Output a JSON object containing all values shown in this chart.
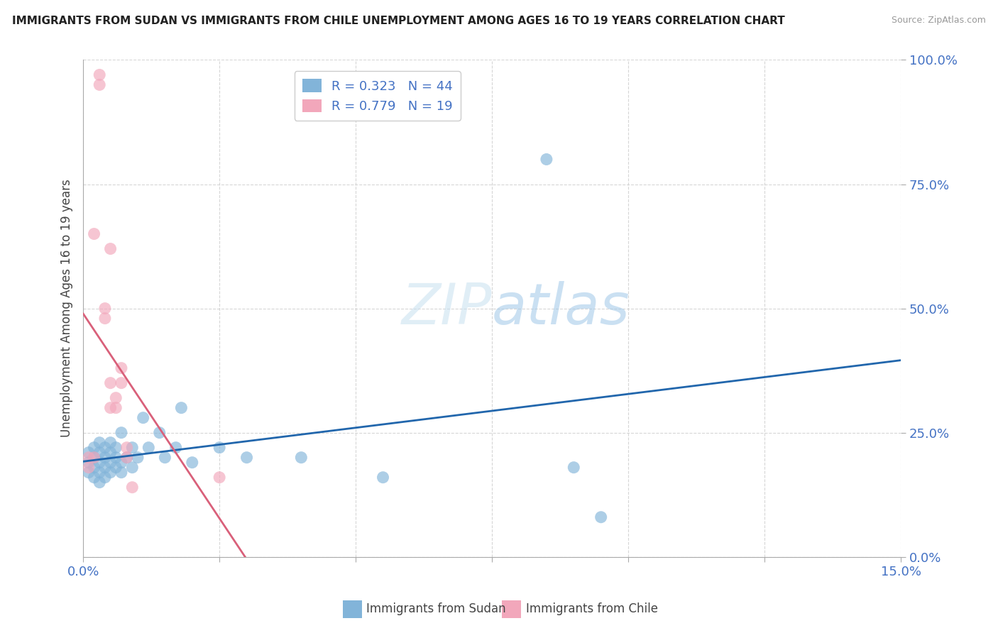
{
  "title": "IMMIGRANTS FROM SUDAN VS IMMIGRANTS FROM CHILE UNEMPLOYMENT AMONG AGES 16 TO 19 YEARS CORRELATION CHART",
  "source": "Source: ZipAtlas.com",
  "ylabel": "Unemployment Among Ages 16 to 19 years",
  "xlim": [
    0.0,
    0.15
  ],
  "ylim": [
    0.0,
    1.0
  ],
  "xticks": [
    0.0,
    0.025,
    0.05,
    0.075,
    0.1,
    0.125,
    0.15
  ],
  "xtick_labels_show": {
    "0.0": "0.0%",
    "0.15": "15.0%"
  },
  "yticks": [
    0.0,
    0.25,
    0.5,
    0.75,
    1.0
  ],
  "ytick_labels": [
    "0.0%",
    "25.0%",
    "50.0%",
    "75.0%",
    "100.0%"
  ],
  "sudan_color": "#82b4d9",
  "chile_color": "#f2a7bb",
  "sudan_line_color": "#2166ac",
  "chile_line_color": "#d9607a",
  "sudan_R": 0.323,
  "sudan_N": 44,
  "chile_R": 0.779,
  "chile_N": 19,
  "background_color": "#ffffff",
  "grid_color": "#cccccc",
  "sudan_x": [
    0.001,
    0.001,
    0.001,
    0.002,
    0.002,
    0.002,
    0.002,
    0.003,
    0.003,
    0.003,
    0.003,
    0.003,
    0.004,
    0.004,
    0.004,
    0.004,
    0.005,
    0.005,
    0.005,
    0.005,
    0.006,
    0.006,
    0.006,
    0.007,
    0.007,
    0.007,
    0.008,
    0.009,
    0.009,
    0.01,
    0.011,
    0.012,
    0.014,
    0.015,
    0.017,
    0.018,
    0.02,
    0.025,
    0.03,
    0.04,
    0.055,
    0.085,
    0.09,
    0.095
  ],
  "sudan_y": [
    0.17,
    0.19,
    0.21,
    0.16,
    0.18,
    0.2,
    0.22,
    0.15,
    0.17,
    0.19,
    0.21,
    0.23,
    0.16,
    0.18,
    0.2,
    0.22,
    0.17,
    0.19,
    0.21,
    0.23,
    0.18,
    0.2,
    0.22,
    0.17,
    0.19,
    0.25,
    0.2,
    0.22,
    0.18,
    0.2,
    0.28,
    0.22,
    0.25,
    0.2,
    0.22,
    0.3,
    0.19,
    0.22,
    0.2,
    0.2,
    0.16,
    0.8,
    0.18,
    0.08
  ],
  "chile_x": [
    0.001,
    0.001,
    0.002,
    0.002,
    0.003,
    0.003,
    0.004,
    0.004,
    0.005,
    0.005,
    0.005,
    0.006,
    0.006,
    0.007,
    0.007,
    0.008,
    0.008,
    0.009,
    0.025
  ],
  "chile_y": [
    0.18,
    0.2,
    0.2,
    0.65,
    0.95,
    0.97,
    0.5,
    0.48,
    0.3,
    0.35,
    0.62,
    0.3,
    0.32,
    0.35,
    0.38,
    0.22,
    0.2,
    0.14,
    0.16
  ],
  "legend_sudan_label": "Immigrants from Sudan",
  "legend_chile_label": "Immigrants from Chile"
}
